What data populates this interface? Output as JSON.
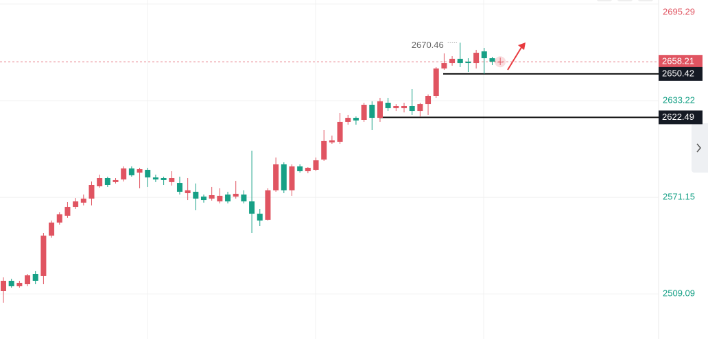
{
  "chart_data": {
    "type": "candlestick",
    "annotation": "2670.46",
    "up_color": "#e05461",
    "down_color": "#16a086",
    "ylim": [
      2480.1,
      2697.9
    ],
    "yticks": [
      2509.09,
      2571.15,
      2633.22,
      2695.29
    ],
    "grid": true,
    "current_price": 2658.21,
    "levels": [
      2650.42,
      2622.49
    ],
    "open": [
      2510.9,
      2517.5,
      2514.0,
      2515.3,
      2521.9,
      2520.6,
      2546.5,
      2554.9,
      2559.3,
      2565.0,
      2567.7,
      2570.3,
      2578.2,
      2583.5,
      2580.9,
      2582.6,
      2589.7,
      2587.0,
      2588.8,
      2583.9,
      2583.5,
      2580.9,
      2580.4,
      2573.8,
      2574.7,
      2571.6,
      2570.3,
      2568.5,
      2572.9,
      2571.6,
      2572.9,
      2568.5,
      2560.6,
      2556.7,
      2575.6,
      2592.3,
      2575.6,
      2591.0,
      2587.9,
      2588.8,
      2595.4,
      2606.4,
      2606.8,
      2619.6,
      2622.2,
      2620.9,
      2630.6,
      2622.2,
      2631.9,
      2628.4,
      2628.4,
      2629.7,
      2626.6,
      2631.0,
      2636.3,
      2653.9,
      2657.4,
      2660.1,
      2658.3,
      2657.4,
      2664.9,
      2660.5,
      2657.9
    ],
    "high": [
      2519.7,
      2518.8,
      2517.5,
      2521.9,
      2523.7,
      2548.3,
      2556.2,
      2561.5,
      2568.1,
      2570.7,
      2572.9,
      2581.3,
      2585.7,
      2584.4,
      2583.5,
      2591.0,
      2591.0,
      2590.1,
      2590.1,
      2585.7,
      2584.4,
      2587.9,
      2584.4,
      2583.5,
      2580.0,
      2572.9,
      2577.8,
      2576.9,
      2574.7,
      2581.7,
      2575.6,
      2601.1,
      2563.7,
      2576.9,
      2596.7,
      2593.6,
      2592.3,
      2592.3,
      2590.5,
      2596.7,
      2614.3,
      2610.8,
      2625.3,
      2624.0,
      2623.1,
      2631.9,
      2632.8,
      2635.0,
      2635.0,
      2631.0,
      2631.9,
      2640.7,
      2631.9,
      2637.2,
      2654.8,
      2663.6,
      2661.8,
      2670.46,
      2660.5,
      2665.8,
      2667.1,
      2661.4,
      2660.9
    ],
    "low": [
      2503.4,
      2513.1,
      2513.1,
      2514.0,
      2515.3,
      2515.3,
      2545.2,
      2553.6,
      2558.0,
      2563.7,
      2565.9,
      2565.9,
      2577.3,
      2577.8,
      2580.0,
      2581.3,
      2584.4,
      2576.9,
      2577.8,
      2580.9,
      2579.1,
      2578.7,
      2572.9,
      2569.4,
      2562.8,
      2567.7,
      2569.0,
      2567.2,
      2567.2,
      2570.3,
      2567.2,
      2548.3,
      2552.7,
      2556.2,
      2574.7,
      2573.8,
      2572.1,
      2587.0,
      2586.6,
      2587.9,
      2594.5,
      2605.5,
      2605.5,
      2617.8,
      2617.8,
      2619.6,
      2614.3,
      2619.6,
      2626.6,
      2626.6,
      2625.7,
      2624.0,
      2623.1,
      2624.0,
      2635.0,
      2653.0,
      2655.7,
      2654.8,
      2651.7,
      2653.9,
      2650.4,
      2656.1,
      2656.1
    ],
    "close": [
      2517.5,
      2514.0,
      2516.2,
      2521.0,
      2517.5,
      2546.5,
      2554.9,
      2560.2,
      2565.0,
      2568.5,
      2570.3,
      2579.1,
      2583.5,
      2579.1,
      2582.2,
      2589.7,
      2585.3,
      2589.2,
      2583.9,
      2582.6,
      2582.2,
      2583.5,
      2574.7,
      2575.6,
      2570.3,
      2569.4,
      2572.5,
      2572.1,
      2568.5,
      2573.4,
      2568.5,
      2560.6,
      2556.2,
      2575.6,
      2592.3,
      2575.6,
      2591.0,
      2587.9,
      2590.1,
      2594.9,
      2607.3,
      2607.7,
      2619.6,
      2622.2,
      2620.5,
      2630.6,
      2622.2,
      2632.8,
      2628.4,
      2629.7,
      2629.7,
      2626.6,
      2631.0,
      2636.3,
      2653.9,
      2657.4,
      2660.1,
      2657.4,
      2657.4,
      2664.0,
      2660.5,
      2658.3,
      2658.21
    ]
  }
}
